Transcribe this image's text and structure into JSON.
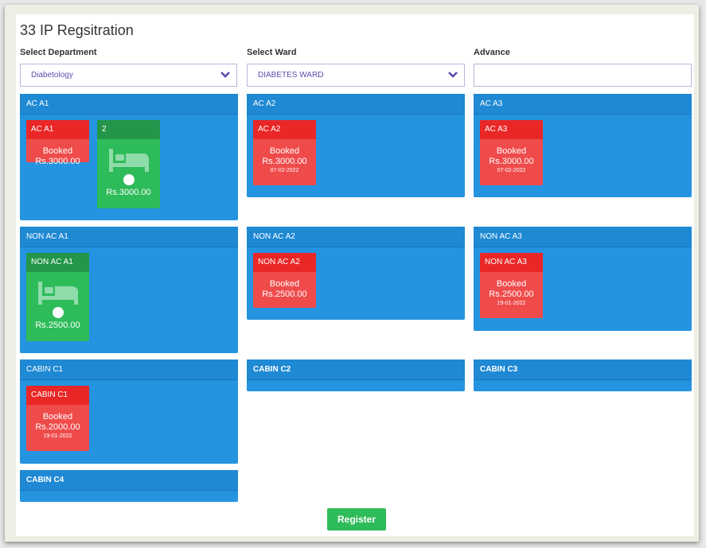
{
  "page": {
    "title": "33 IP Regsitration"
  },
  "form": {
    "department_label": "Select Department",
    "department_value": "Diabetology",
    "ward_label": "Select Ward",
    "ward_value": "DIABETES WARD",
    "advance_label": "Advance",
    "advance_value": ""
  },
  "rooms": [
    {
      "name": "AC A1",
      "beds": [
        {
          "name": "AC A1",
          "status": "Booked",
          "price": "Rs.3000.00",
          "date": ""
        },
        {
          "name": "2",
          "status": "",
          "price": "Rs.3000.00",
          "date": ""
        }
      ]
    },
    {
      "name": "AC A2",
      "beds": [
        {
          "name": "AC A2",
          "status": "Booked",
          "price": "Rs.3000.00",
          "date": "07-02-2022"
        }
      ]
    },
    {
      "name": "AC A3",
      "beds": [
        {
          "name": "AC A3",
          "status": "Booked",
          "price": "Rs.3000.00",
          "date": "07-02-2022"
        }
      ]
    },
    {
      "name": "NON AC A1",
      "beds": [
        {
          "name": "NON AC A1",
          "status": "",
          "price": "Rs.2500.00",
          "date": ""
        }
      ]
    },
    {
      "name": "NON AC A2",
      "beds": [
        {
          "name": "NON AC A2",
          "status": "Booked",
          "price": "Rs.2500.00",
          "date": ""
        }
      ]
    },
    {
      "name": "NON AC A3",
      "beds": [
        {
          "name": "NON AC A3",
          "status": "Booked",
          "price": "Rs.2500.00",
          "date": "19-01-2022"
        }
      ]
    },
    {
      "name": "CABIN C1",
      "beds": [
        {
          "name": "CABIN C1",
          "status": "Booked",
          "price": "Rs.2000.00",
          "date": "19-01-2022"
        }
      ]
    },
    {
      "name": "CABIN C2",
      "beds": []
    },
    {
      "name": "CABIN C3",
      "beds": []
    },
    {
      "name": "CABIN C4",
      "beds": []
    }
  ],
  "actions": {
    "register_label": "Register"
  },
  "colors": {
    "ward_blue": "#2493e0",
    "booked_red": "#ef4b4b",
    "available_green": "#2ebb59"
  },
  "icons": {
    "dropdown": "chevron-down-icon",
    "bed": "bed-icon"
  }
}
